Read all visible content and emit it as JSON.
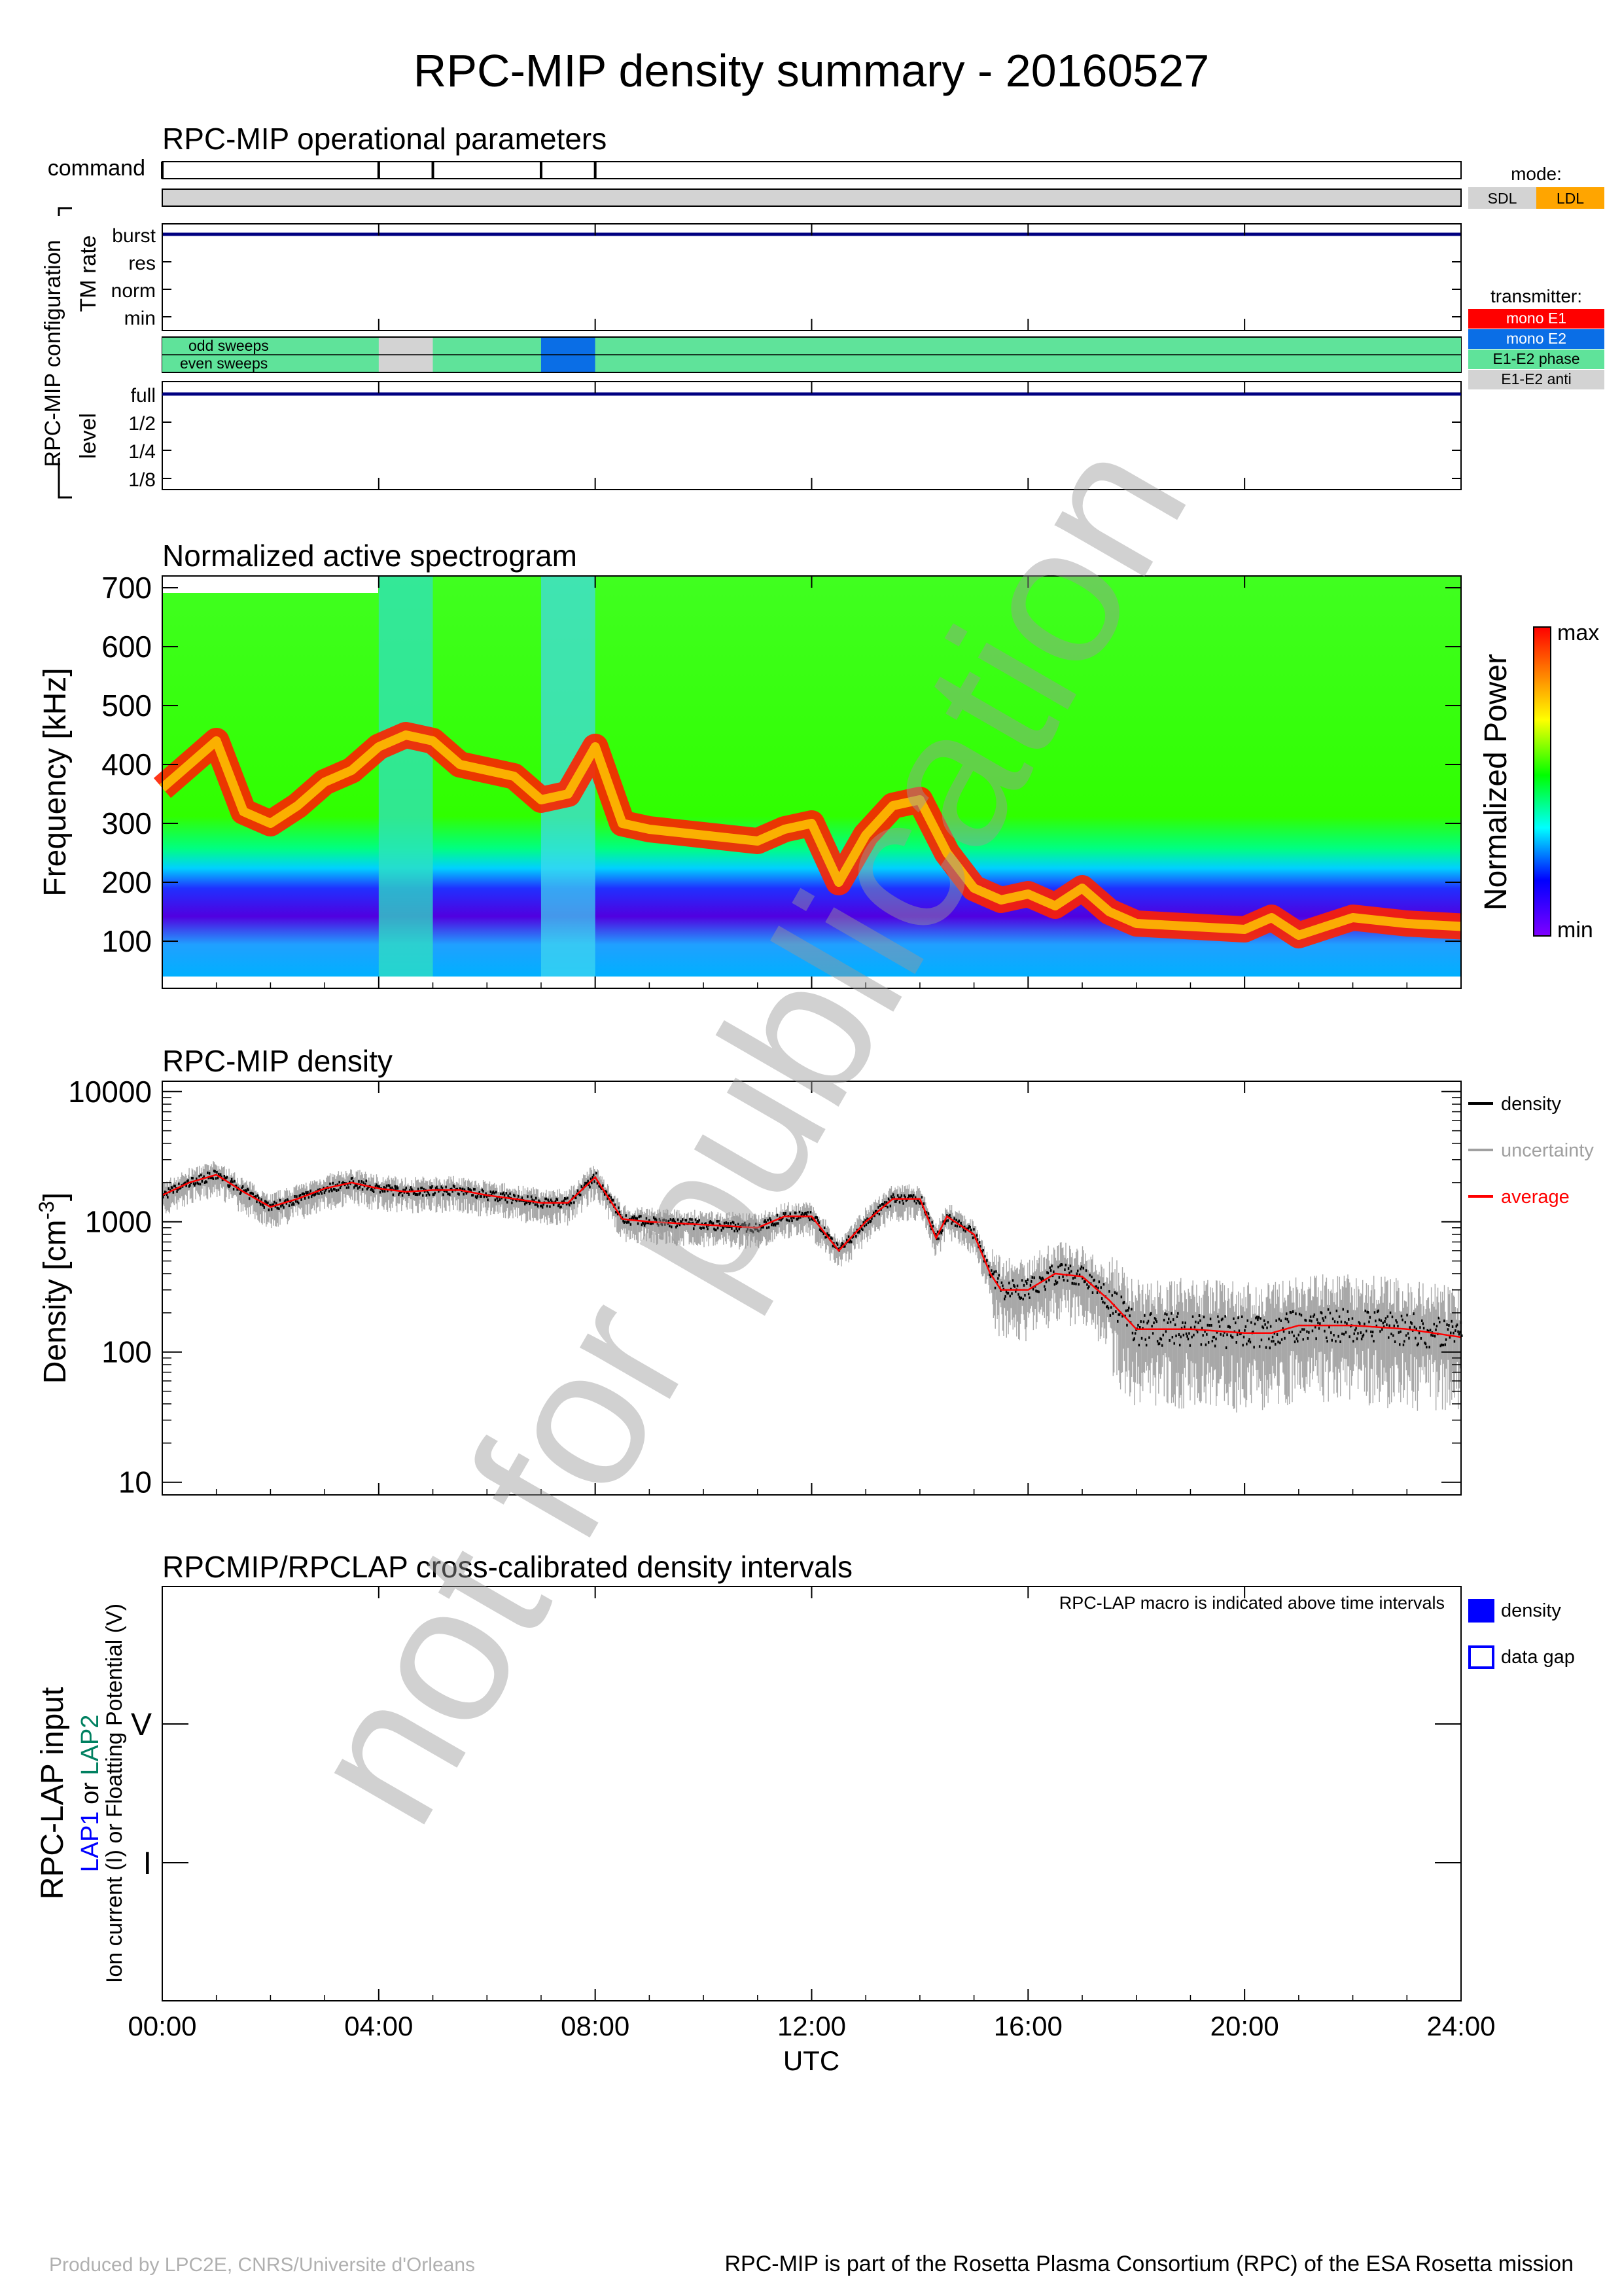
{
  "title": "RPC-MIP density summary - 20160527",
  "watermark": "not for publication",
  "footer": {
    "left": "Produced by LPC2E, CNRS/Universite d'Orleans",
    "right": "RPC-MIP is part of the Rosetta Plasma Consortium (RPC) of the ESA Rosetta mission"
  },
  "x_axis": {
    "label": "UTC",
    "ticks": [
      "00:00",
      "04:00",
      "08:00",
      "12:00",
      "16:00",
      "20:00",
      "24:00"
    ],
    "range_hours": [
      0,
      24
    ]
  },
  "operational": {
    "title": "RPC-MIP operational parameters",
    "command_label": "command",
    "command_marks_h": [
      0,
      4,
      5,
      7,
      8
    ],
    "group_label": "RPC-MIP configuration",
    "tm_rate_label": "TM rate",
    "tm_levels": [
      "burst",
      "res",
      "norm",
      "min"
    ],
    "tm_value": "burst",
    "sweep_labels": [
      "odd sweeps",
      "even sweeps"
    ],
    "sweep_segments": [
      {
        "start_h": 0,
        "end_h": 4,
        "mode": "E1-E2 phase"
      },
      {
        "start_h": 4,
        "end_h": 5,
        "mode": "E1-E2 anti"
      },
      {
        "start_h": 5,
        "end_h": 7,
        "mode": "E1-E2 phase"
      },
      {
        "start_h": 7,
        "end_h": 8,
        "mode": "mono E2"
      },
      {
        "start_h": 8,
        "end_h": 24,
        "mode": "E1-E2 phase"
      }
    ],
    "level_label": "level",
    "levels": [
      "full",
      "1/2",
      "1/4",
      "1/8"
    ],
    "level_value": "full",
    "mode_title": "mode:",
    "modes": [
      {
        "label": "SDL",
        "color": "#d3d3d3"
      },
      {
        "label": "LDL",
        "color": "#ffa500"
      }
    ],
    "transmitter_title": "transmitter:",
    "transmitters": [
      {
        "label": "mono E1",
        "color": "#ff0000"
      },
      {
        "label": "mono E2",
        "color": "#0a6ee6"
      },
      {
        "label": "E1-E2 phase",
        "color": "#5fe39a"
      },
      {
        "label": "E1-E2 anti",
        "color": "#d3d3d3"
      }
    ],
    "line_color": "#000080"
  },
  "spectrogram": {
    "title": "Normalized active spectrogram",
    "ylabel": "Frequency [kHz]",
    "yticks": [
      100,
      200,
      300,
      400,
      500,
      600,
      700
    ],
    "ylim": [
      20,
      720
    ],
    "colorbar_label": "Normalized Power",
    "colorbar_max": "max",
    "colorbar_min": "min",
    "ridge_frequency_khz": {
      "hours": [
        0,
        0.5,
        1,
        1.5,
        2,
        2.5,
        3,
        3.5,
        4,
        4.5,
        5,
        5.5,
        6,
        6.5,
        7,
        7.5,
        8,
        8.5,
        9,
        10,
        11,
        11.5,
        12,
        12.5,
        13,
        13.5,
        14,
        14.5,
        15,
        15.5,
        16,
        16.5,
        17,
        17.5,
        18,
        19,
        20,
        20.5,
        21,
        22,
        23,
        24
      ],
      "values": [
        360,
        400,
        440,
        320,
        300,
        330,
        370,
        390,
        430,
        450,
        440,
        400,
        390,
        380,
        340,
        350,
        430,
        300,
        290,
        280,
        270,
        290,
        300,
        200,
        280,
        330,
        340,
        250,
        190,
        170,
        180,
        160,
        190,
        150,
        130,
        125,
        120,
        140,
        110,
        140,
        130,
        125
      ]
    }
  },
  "density": {
    "title": "RPC-MIP density",
    "ylabel": "Density [cm",
    "ylabel_sup": "-3",
    "ylabel_end": "]",
    "yticks": [
      "10",
      "100",
      "1000",
      "10000"
    ],
    "ylim": [
      8,
      12000
    ],
    "scale": "log",
    "legend": [
      {
        "label": "density",
        "color": "#000000"
      },
      {
        "label": "uncertainty",
        "color": "#a0a0a0"
      },
      {
        "label": "average",
        "color": "#ff0000"
      }
    ],
    "average_cm3": {
      "hours": [
        0,
        0.5,
        1,
        1.5,
        2,
        2.5,
        3,
        3.5,
        4,
        4.5,
        5,
        5.5,
        6,
        6.5,
        7,
        7.5,
        8,
        8.5,
        9,
        10,
        11,
        11.5,
        12,
        12.5,
        13,
        13.5,
        14,
        14.3,
        14.5,
        15,
        15.3,
        15.5,
        16,
        16.5,
        17,
        17.5,
        18,
        19,
        20,
        20.5,
        21,
        22,
        23,
        24
      ],
      "values": [
        1600,
        2000,
        2300,
        1700,
        1300,
        1500,
        1800,
        2000,
        1800,
        1700,
        1750,
        1750,
        1600,
        1500,
        1400,
        1400,
        2200,
        1050,
        1000,
        950,
        900,
        1100,
        1100,
        600,
        1000,
        1500,
        1500,
        750,
        1100,
        800,
        400,
        300,
        300,
        400,
        380,
        250,
        150,
        150,
        140,
        140,
        160,
        160,
        150,
        130
      ]
    }
  },
  "lap": {
    "title": "RPCMIP/RPCLAP cross-calibrated density intervals",
    "note": "RPC-LAP macro is indicated above time intervals",
    "ylabel_main": "RPC-LAP input",
    "ylabel_lap1": "LAP1",
    "ylabel_or": " or ",
    "ylabel_lap2": "LAP2",
    "ylabel_sub": "Ion current (I) or Floatting Potential (V)",
    "ytick_v": "V",
    "ytick_i": "I",
    "lap1_color": "#0000ff",
    "lap2_color": "#008060",
    "legend": [
      {
        "label": "density",
        "style": "filled",
        "color": "#0000ff"
      },
      {
        "label": "data gap",
        "style": "outline",
        "color": "#0000ff"
      }
    ]
  }
}
